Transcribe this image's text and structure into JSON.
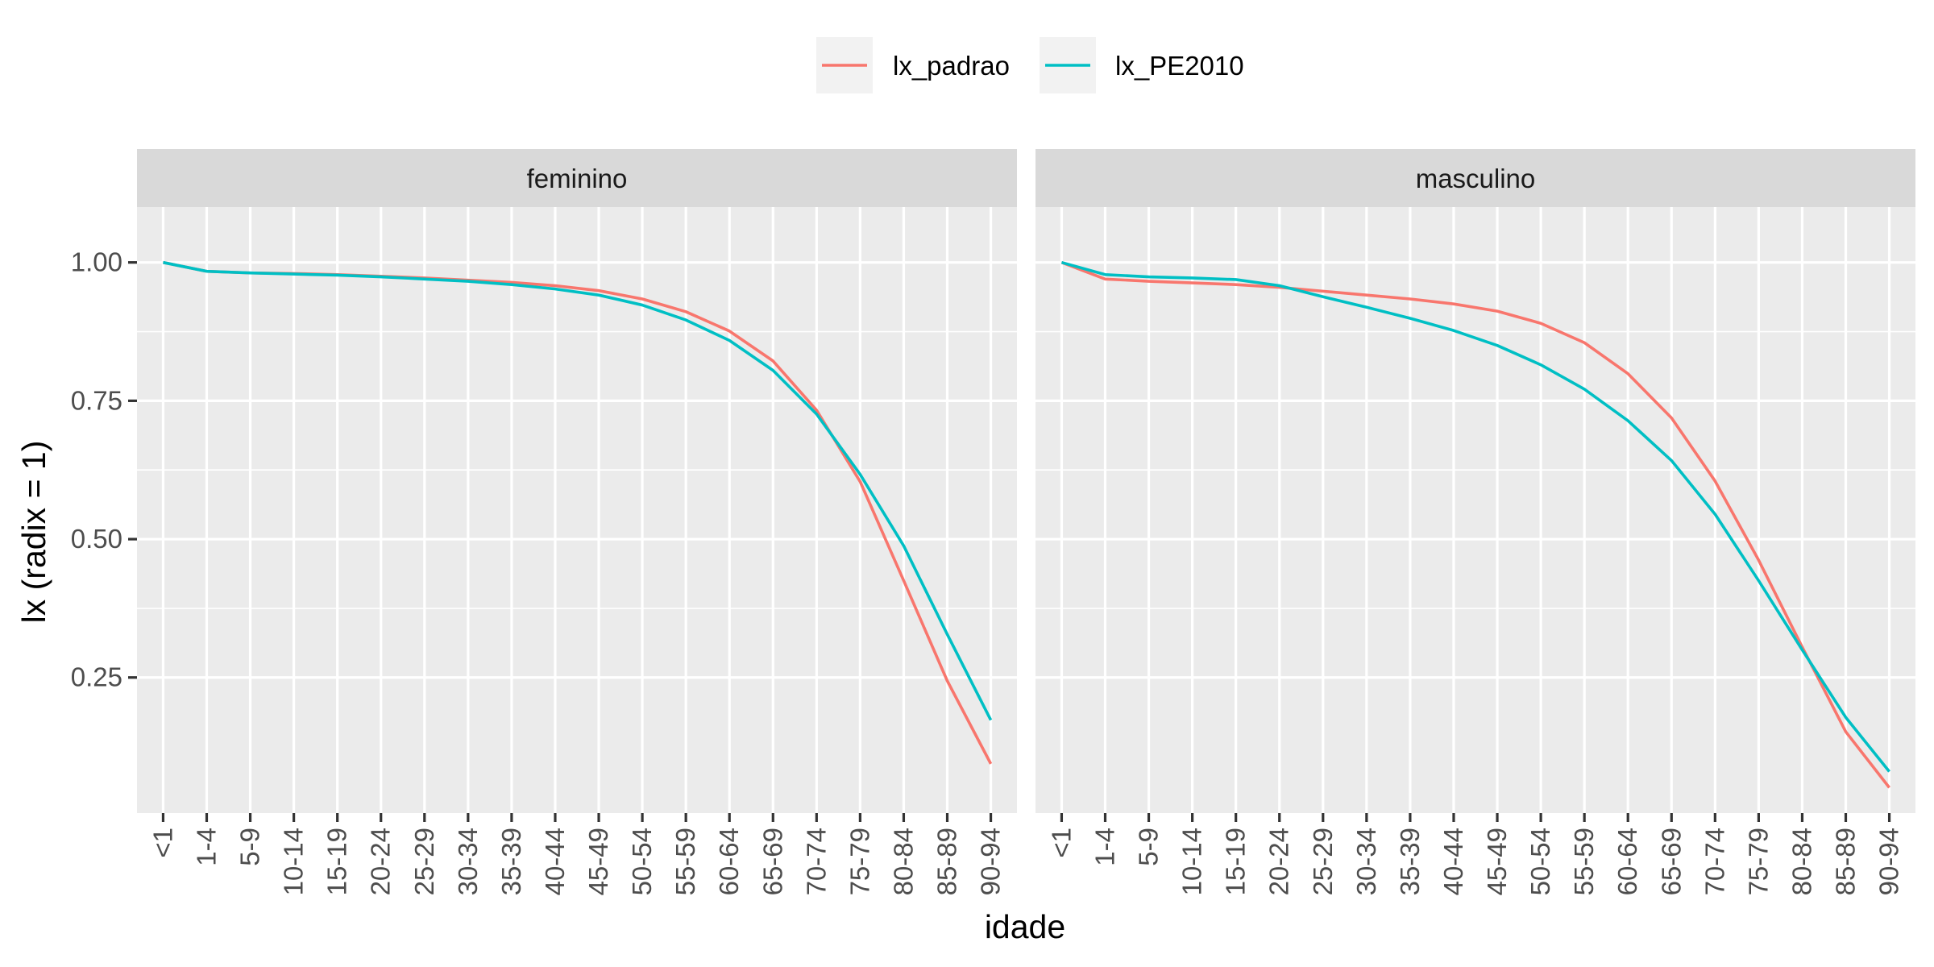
{
  "chart_data": {
    "type": "line",
    "xlabel": "idade",
    "ylabel": "lx (radix = 1)",
    "ylim": [
      0.005,
      1.1
    ],
    "yticks": [
      0.25,
      0.5,
      0.75,
      1.0
    ],
    "ytick_labels": [
      "0.25",
      "0.50",
      "0.75",
      "1.00"
    ],
    "grid": true,
    "legend_position": "top",
    "categories": [
      "<1",
      "1-4",
      "5-9",
      "10-14",
      "15-19",
      "20-24",
      "25-29",
      "30-34",
      "35-39",
      "40-44",
      "45-49",
      "50-54",
      "55-59",
      "60-64",
      "65-69",
      "70-74",
      "75-79",
      "80-84",
      "85-89",
      "90-94"
    ],
    "legend": [
      {
        "name": "lx_padrao",
        "color": "#F8766D"
      },
      {
        "name": "lx_PE2010",
        "color": "#00BFC4"
      }
    ],
    "panels": [
      {
        "title": "feminino",
        "series": [
          {
            "name": "lx_padrao",
            "color": "#F8766D",
            "values": [
              1.0,
              0.984,
              0.981,
              0.98,
              0.978,
              0.975,
              0.972,
              0.968,
              0.964,
              0.958,
              0.949,
              0.934,
              0.911,
              0.876,
              0.822,
              0.733,
              0.604,
              0.425,
              0.244,
              0.094
            ]
          },
          {
            "name": "lx_PE2010",
            "color": "#00BFC4",
            "values": [
              1.0,
              0.984,
              0.981,
              0.979,
              0.977,
              0.974,
              0.97,
              0.966,
              0.96,
              0.952,
              0.941,
              0.923,
              0.896,
              0.859,
              0.805,
              0.726,
              0.617,
              0.488,
              0.328,
              0.173
            ]
          }
        ]
      },
      {
        "title": "masculino",
        "series": [
          {
            "name": "lx_padrao",
            "color": "#F8766D",
            "values": [
              1.0,
              0.97,
              0.966,
              0.963,
              0.96,
              0.955,
              0.948,
              0.941,
              0.934,
              0.925,
              0.912,
              0.89,
              0.855,
              0.799,
              0.719,
              0.605,
              0.462,
              0.305,
              0.152,
              0.051
            ]
          },
          {
            "name": "lx_PE2010",
            "color": "#00BFC4",
            "values": [
              1.0,
              0.978,
              0.974,
              0.972,
              0.969,
              0.958,
              0.938,
              0.919,
              0.899,
              0.877,
              0.85,
              0.815,
              0.771,
              0.714,
              0.642,
              0.545,
              0.425,
              0.3,
              0.178,
              0.08
            ]
          }
        ]
      }
    ]
  }
}
